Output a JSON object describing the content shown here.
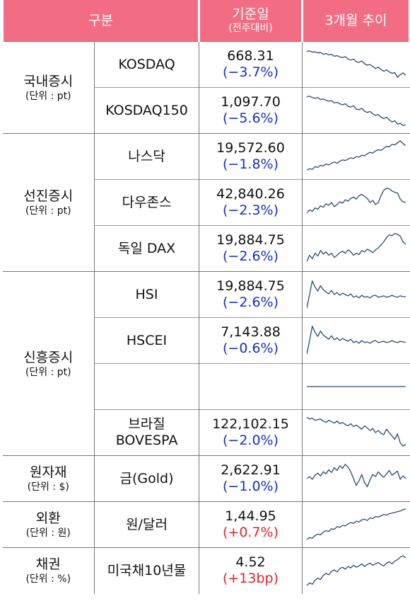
{
  "header": {
    "category": "구분",
    "base_date": "기준일",
    "base_date_sub": "(전주대비)",
    "trend": "3개월 추이"
  },
  "groups": [
    {
      "name": "국내증시",
      "unit": "(단위 : pt)",
      "rows": [
        {
          "name": "KOSDAQ",
          "value": "668.31",
          "change": "(−3.7%)",
          "sign": "neg",
          "trend": [
            0.88,
            0.9,
            0.86,
            0.87,
            0.84,
            0.85,
            0.8,
            0.82,
            0.78,
            0.8,
            0.74,
            0.76,
            0.72,
            0.7,
            0.73,
            0.66,
            0.63,
            0.66,
            0.58,
            0.56,
            0.6,
            0.52,
            0.48,
            0.5,
            0.44,
            0.38,
            0.42,
            0.35,
            0.3,
            0.34,
            0.28,
            0.24,
            0.26,
            0.12,
            0.2,
            0.25,
            0.18
          ]
        },
        {
          "name": "KOSDAQ150",
          "value": "1,097.70",
          "change": "(−5.6%)",
          "sign": "neg",
          "trend": [
            0.9,
            0.92,
            0.88,
            0.86,
            0.88,
            0.82,
            0.84,
            0.8,
            0.77,
            0.79,
            0.72,
            0.74,
            0.7,
            0.66,
            0.7,
            0.62,
            0.6,
            0.64,
            0.54,
            0.52,
            0.56,
            0.48,
            0.44,
            0.47,
            0.4,
            0.35,
            0.38,
            0.3,
            0.26,
            0.3,
            0.22,
            0.16,
            0.2,
            0.1,
            0.12,
            0.06,
            0.08
          ]
        }
      ]
    },
    {
      "name": "선진증시",
      "unit": "(단위 : pt)",
      "rows": [
        {
          "name": "나스닥",
          "value": "19,572.60",
          "change": "(−1.8%)",
          "sign": "neg",
          "trend": [
            0.1,
            0.14,
            0.12,
            0.2,
            0.18,
            0.24,
            0.22,
            0.28,
            0.25,
            0.3,
            0.34,
            0.3,
            0.36,
            0.4,
            0.38,
            0.42,
            0.46,
            0.44,
            0.5,
            0.48,
            0.54,
            0.52,
            0.58,
            0.62,
            0.6,
            0.66,
            0.7,
            0.68,
            0.74,
            0.8,
            0.78,
            0.86,
            0.84,
            0.9,
            0.96,
            0.88,
            0.82
          ]
        },
        {
          "name": "다우존스",
          "value": "42,840.26",
          "change": "(−2.3%)",
          "sign": "neg",
          "trend": [
            0.2,
            0.28,
            0.24,
            0.34,
            0.3,
            0.4,
            0.36,
            0.46,
            0.42,
            0.5,
            0.38,
            0.44,
            0.52,
            0.48,
            0.58,
            0.54,
            0.62,
            0.66,
            0.6,
            0.7,
            0.74,
            0.68,
            0.62,
            0.5,
            0.56,
            0.44,
            0.5,
            0.7,
            0.86,
            0.92,
            0.9,
            0.84,
            0.8,
            0.78,
            0.6,
            0.52,
            0.5
          ]
        },
        {
          "name": "독일 DAX",
          "value": "19,884.75",
          "change": "(−2.6%)",
          "sign": "neg",
          "trend": [
            0.12,
            0.3,
            0.2,
            0.36,
            0.28,
            0.44,
            0.34,
            0.4,
            0.3,
            0.36,
            0.24,
            0.3,
            0.38,
            0.42,
            0.36,
            0.46,
            0.4,
            0.3,
            0.36,
            0.32,
            0.44,
            0.4,
            0.48,
            0.44,
            0.38,
            0.46,
            0.52,
            0.6,
            0.7,
            0.82,
            0.9,
            0.88,
            0.94,
            0.92,
            0.86,
            0.7,
            0.62
          ]
        }
      ]
    },
    {
      "name": "신흥증시",
      "unit": "(단위 : pt)",
      "rows": [
        {
          "name": "HSI",
          "value": "19,884.75",
          "change": "(−2.6%)",
          "sign": "neg",
          "trend": [
            0.1,
            0.5,
            0.9,
            0.72,
            0.6,
            0.76,
            0.64,
            0.58,
            0.52,
            0.62,
            0.5,
            0.56,
            0.48,
            0.54,
            0.5,
            0.46,
            0.52,
            0.42,
            0.46,
            0.4,
            0.48,
            0.42,
            0.44,
            0.4,
            0.46,
            0.48,
            0.42,
            0.44,
            0.46,
            0.42,
            0.44,
            0.48,
            0.44,
            0.42,
            0.46,
            0.44,
            0.43
          ]
        },
        {
          "name": "HSCEI",
          "value": "7,143.88",
          "change": "(−0.6%)",
          "sign": "neg",
          "trend": [
            0.1,
            0.5,
            0.92,
            0.74,
            0.62,
            0.78,
            0.66,
            0.6,
            0.54,
            0.64,
            0.52,
            0.58,
            0.5,
            0.56,
            0.52,
            0.48,
            0.54,
            0.44,
            0.48,
            0.42,
            0.5,
            0.44,
            0.46,
            0.42,
            0.48,
            0.5,
            0.44,
            0.46,
            0.48,
            0.44,
            0.46,
            0.5,
            0.46,
            0.44,
            0.48,
            0.46,
            0.45
          ]
        },
        {
          "name": "",
          "value": "",
          "change": "",
          "sign": "neg",
          "trend": [
            0.5,
            0.5
          ]
        },
        {
          "name": "브라질\nBOVESPA",
          "value": "122,102.15",
          "change": "(−2.0%)",
          "sign": "neg",
          "trend": [
            0.95,
            0.9,
            0.92,
            0.86,
            0.88,
            0.9,
            0.84,
            0.8,
            0.86,
            0.82,
            0.78,
            0.84,
            0.76,
            0.8,
            0.74,
            0.7,
            0.76,
            0.68,
            0.72,
            0.66,
            0.6,
            0.7,
            0.64,
            0.56,
            0.62,
            0.5,
            0.56,
            0.48,
            0.44,
            0.6,
            0.5,
            0.4,
            0.3,
            0.46,
            0.2,
            0.1,
            0.16
          ]
        }
      ]
    },
    {
      "name": "원자재",
      "unit": "(단위 : $)",
      "rows": [
        {
          "name": "금(Gold)",
          "value": "2,622.91",
          "change": "(−1.0%)",
          "sign": "neg",
          "trend": [
            0.5,
            0.56,
            0.48,
            0.6,
            0.66,
            0.58,
            0.7,
            0.64,
            0.76,
            0.68,
            0.82,
            0.74,
            0.88,
            0.8,
            0.92,
            0.84,
            0.7,
            0.5,
            0.3,
            0.44,
            0.62,
            0.38,
            0.26,
            0.46,
            0.62,
            0.56,
            0.7,
            0.6,
            0.54,
            0.64,
            0.74,
            0.6,
            0.66,
            0.72,
            0.48,
            0.58,
            0.5
          ]
        }
      ]
    },
    {
      "name": "외환",
      "unit": "(단위 : 원)",
      "rows": [
        {
          "name": "원/달러",
          "value": "1,44.95",
          "change": "(+0.7%)",
          "sign": "pos",
          "trend": [
            0.06,
            0.12,
            0.1,
            0.18,
            0.22,
            0.2,
            0.28,
            0.32,
            0.3,
            0.38,
            0.36,
            0.44,
            0.42,
            0.48,
            0.46,
            0.52,
            0.56,
            0.54,
            0.6,
            0.58,
            0.64,
            0.66,
            0.62,
            0.7,
            0.68,
            0.74,
            0.72,
            0.76,
            0.8,
            0.78,
            0.82,
            0.84,
            0.86,
            0.88,
            0.9,
            0.94,
            0.96
          ]
        }
      ]
    },
    {
      "name": "채권",
      "unit": "(단위 : %)",
      "rows": [
        {
          "name": "미국채10년물",
          "value": "4.52",
          "change": "(+13bp)",
          "sign": "pos",
          "trend": [
            0.06,
            0.14,
            0.1,
            0.22,
            0.28,
            0.24,
            0.36,
            0.42,
            0.38,
            0.48,
            0.52,
            0.46,
            0.56,
            0.6,
            0.54,
            0.62,
            0.58,
            0.66,
            0.6,
            0.64,
            0.7,
            0.62,
            0.68,
            0.72,
            0.66,
            0.7,
            0.74,
            0.68,
            0.64,
            0.72,
            0.76,
            0.7,
            0.78,
            0.82,
            0.9,
            0.94,
            0.88
          ]
        }
      ]
    }
  ]
}
